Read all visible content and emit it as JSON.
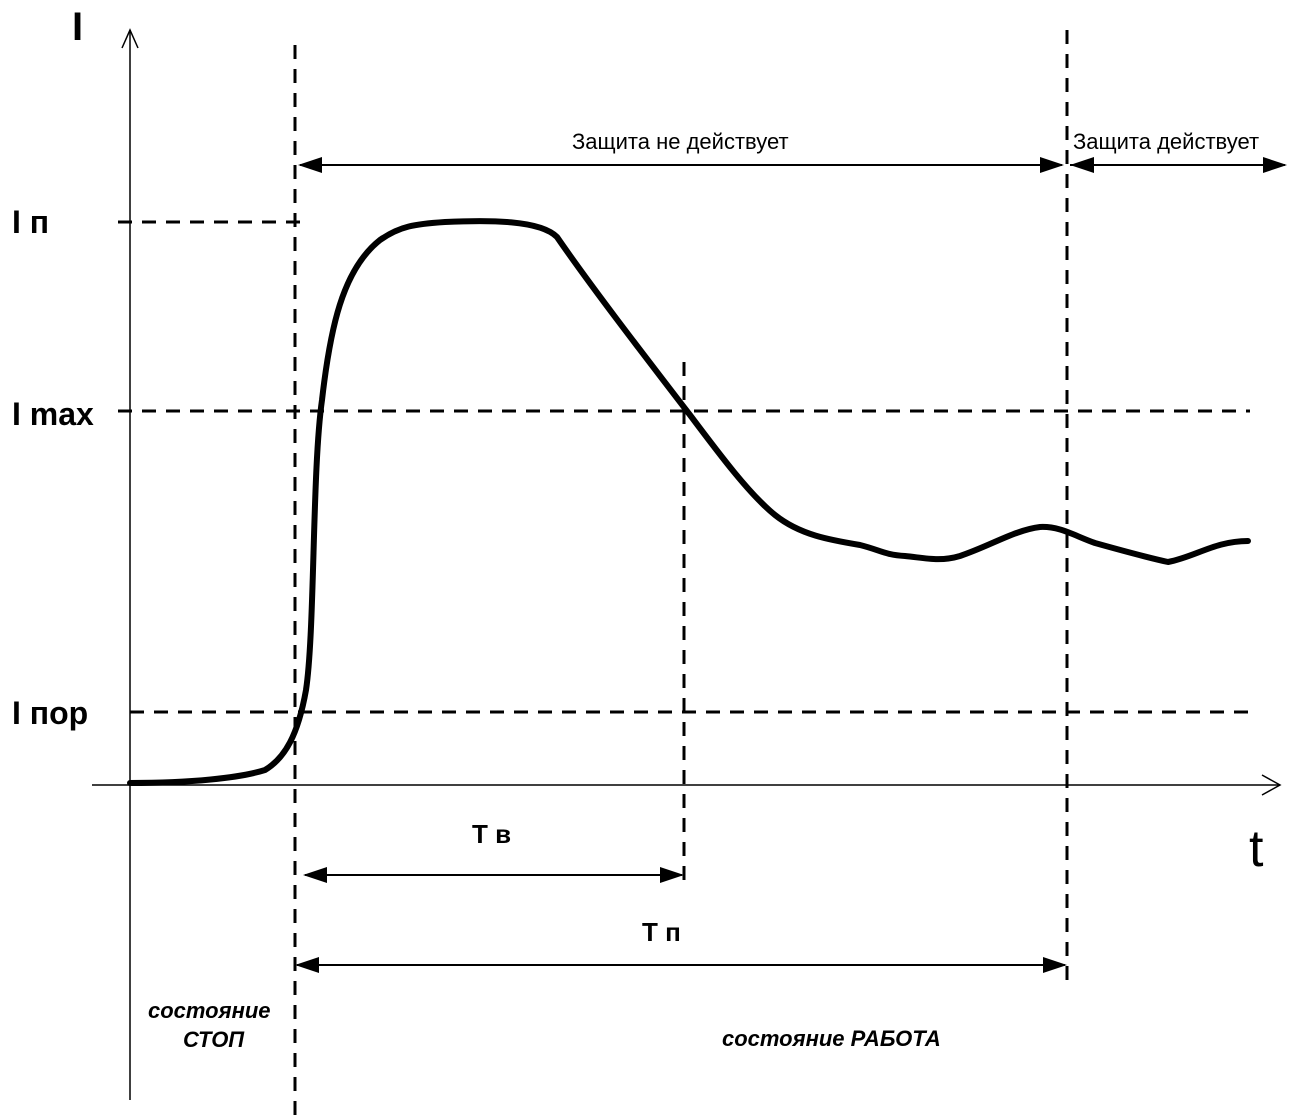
{
  "axes": {
    "y_label": "I",
    "x_label": "t"
  },
  "levels": {
    "i_p": "I п",
    "i_max": "I max",
    "i_por": "I пор"
  },
  "zones": {
    "not_active": "Защита  не действует",
    "active": "Защита действует"
  },
  "intervals": {
    "t_v": "Т в",
    "t_p": "Т п"
  },
  "states": {
    "stop_line1": "состояние",
    "stop_line2": "СТОП",
    "work": "состояние РАБОТА"
  }
}
